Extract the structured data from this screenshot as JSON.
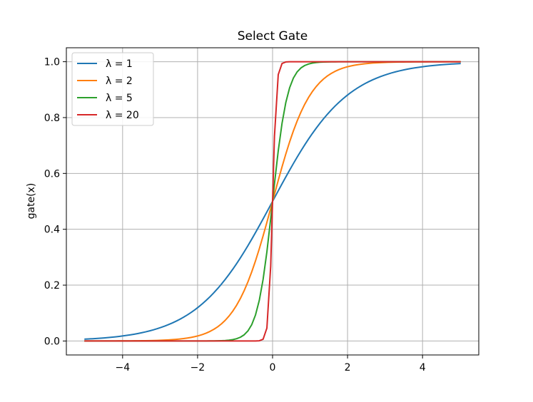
{
  "chart_data": {
    "type": "line",
    "title": "Select Gate",
    "xlabel": "",
    "ylabel": "gate(x)",
    "xlim": [
      -5.5,
      5.5
    ],
    "ylim": [
      -0.05,
      1.05
    ],
    "x_range": [
      -5,
      5
    ],
    "xticks": [
      -4,
      -2,
      0,
      2,
      4
    ],
    "xtick_labels": [
      "−4",
      "−2",
      "0",
      "2",
      "4"
    ],
    "yticks": [
      0.0,
      0.2,
      0.4,
      0.6,
      0.8,
      1.0
    ],
    "ytick_labels": [
      "0.0",
      "0.2",
      "0.4",
      "0.6",
      "0.8",
      "1.0"
    ],
    "grid": true,
    "legend_position": "top-left",
    "series": [
      {
        "name": "λ = 1",
        "lambda": 1,
        "color": "#1f77b4"
      },
      {
        "name": "λ = 2",
        "lambda": 2,
        "color": "#ff7f0e"
      },
      {
        "name": "λ = 5",
        "lambda": 5,
        "color": "#2ca02c"
      },
      {
        "name": "λ = 20",
        "lambda": 20,
        "color": "#d62728"
      }
    ]
  }
}
